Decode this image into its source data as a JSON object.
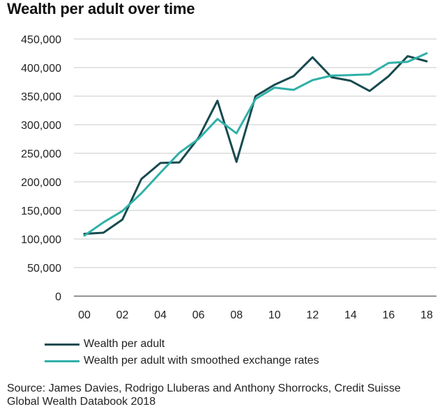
{
  "chart_data": {
    "type": "line",
    "title": "Wealth per adult over time",
    "xlabel": "",
    "ylabel": "",
    "categories": [
      "00",
      "01",
      "02",
      "03",
      "04",
      "05",
      "06",
      "07",
      "08",
      "09",
      "10",
      "11",
      "12",
      "13",
      "14",
      "15",
      "16",
      "17",
      "18"
    ],
    "x_tick_labels": [
      "00",
      "02",
      "04",
      "06",
      "08",
      "10",
      "12",
      "14",
      "16",
      "18"
    ],
    "y_ticks": [
      0,
      50000,
      100000,
      150000,
      200000,
      250000,
      300000,
      350000,
      400000,
      450000
    ],
    "y_tick_labels": [
      "0",
      "50,000",
      "100,000",
      "150,000",
      "200,000",
      "250,000",
      "300,000",
      "350,000",
      "400,000",
      "450,000"
    ],
    "ylim": [
      0,
      450000
    ],
    "grid": "horizontal",
    "series": [
      {
        "name": "Wealth per adult",
        "color": "#174a4f",
        "values": [
          109000,
          111000,
          134000,
          205000,
          233000,
          234000,
          277000,
          342000,
          235000,
          350000,
          370000,
          385000,
          418000,
          383000,
          377000,
          359000,
          385000,
          420000,
          411000
        ]
      },
      {
        "name": "Wealth per adult with smoothed exchange rates",
        "color": "#2fb0a8",
        "values": [
          106000,
          129000,
          149000,
          180000,
          216000,
          251000,
          275000,
          310000,
          285000,
          345000,
          365000,
          361000,
          378000,
          386000,
          387000,
          388000,
          408000,
          410000,
          425000
        ]
      }
    ]
  },
  "source_line1": "Source: James Davies, Rodrigo Lluberas and Anthony Shorrocks, Credit Suisse",
  "source_line2": "Global Wealth Databook 2018"
}
